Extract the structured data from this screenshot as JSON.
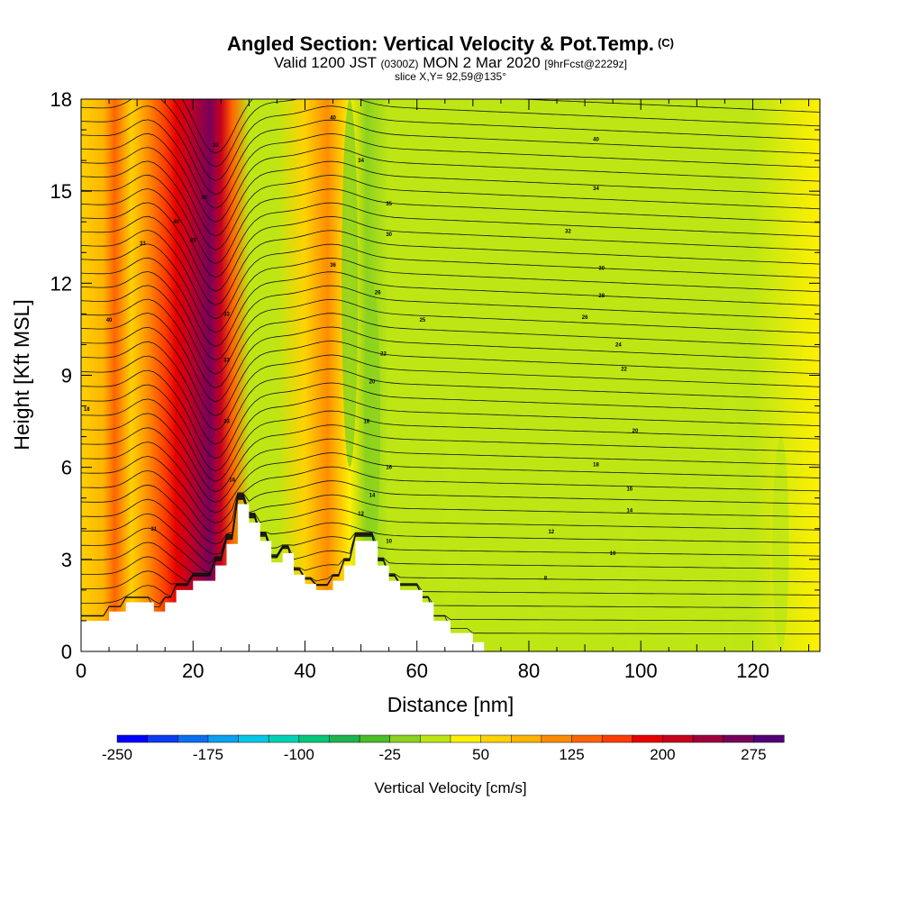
{
  "header": {
    "title": "Angled Section: Vertical Velocity & Pot.Temp.",
    "title_suffix": "(C)",
    "valid_prefix": "Valid 1200 JST",
    "valid_zulu": "(0300Z)",
    "valid_date": "MON 2 Mar 2020",
    "forecast": "[9hrFcst@2229z]",
    "slice": "slice X,Y= 92,59@135°"
  },
  "chart_data": {
    "type": "heatmap",
    "xlabel": "Distance [nm]",
    "ylabel": "Height [Kft MSL]",
    "xlim": [
      0,
      132
    ],
    "ylim": [
      0,
      18
    ],
    "x_ticks": [
      0,
      20,
      40,
      60,
      80,
      100,
      120
    ],
    "y_ticks": [
      0,
      3,
      6,
      9,
      12,
      15,
      18
    ],
    "colorbar": {
      "label": "Vertical Velocity [cm/s]",
      "range": [
        -250,
        300
      ],
      "step": 25,
      "tick_labels": [
        "-250",
        "-175",
        "-100",
        "-25",
        "50",
        "125",
        "200",
        "275"
      ],
      "colors": [
        "#0000ff",
        "#0a3cf0",
        "#0a6ef0",
        "#0aa0f0",
        "#00c8e6",
        "#00d2b4",
        "#00c878",
        "#1eb450",
        "#4bbe28",
        "#8cd21e",
        "#bee614",
        "#fff000",
        "#ffd200",
        "#ffb400",
        "#ff8c00",
        "#ff6400",
        "#ff3c00",
        "#e60000",
        "#c8001e",
        "#a0003c",
        "#78005a",
        "#500078"
      ]
    },
    "velocity_columns": [
      {
        "x": 0,
        "v": 50
      },
      {
        "x": 4,
        "v": 75
      },
      {
        "x": 6,
        "v": 125
      },
      {
        "x": 9,
        "v": 50
      },
      {
        "x": 12,
        "v": 100
      },
      {
        "x": 15,
        "v": 150
      },
      {
        "x": 17,
        "v": 180
      },
      {
        "x": 19,
        "v": 210
      },
      {
        "x": 21,
        "v": 240
      },
      {
        "x": 23,
        "v": 260
      },
      {
        "x": 25,
        "v": 200
      },
      {
        "x": 27,
        "v": 125
      },
      {
        "x": 30,
        "v": 20
      },
      {
        "x": 35,
        "v": 5
      },
      {
        "x": 40,
        "v": 60
      },
      {
        "x": 44,
        "v": 100
      },
      {
        "x": 48,
        "v": 30
      },
      {
        "x": 51,
        "v": -10
      },
      {
        "x": 55,
        "v": 0
      },
      {
        "x": 60,
        "v": 15
      },
      {
        "x": 70,
        "v": 20
      },
      {
        "x": 80,
        "v": 20
      },
      {
        "x": 90,
        "v": 15
      },
      {
        "x": 100,
        "v": 20
      },
      {
        "x": 110,
        "v": 20
      },
      {
        "x": 120,
        "v": 20
      },
      {
        "x": 132,
        "v": 25
      }
    ],
    "downdraft_bands": [
      {
        "x": 48,
        "y0": 6,
        "y1": 18,
        "v": -10
      },
      {
        "x": 52,
        "y0": 3,
        "y1": 12,
        "v": -5
      },
      {
        "x": 66,
        "y0": 0,
        "y1": 9,
        "v": 0
      },
      {
        "x": 81,
        "y0": 0,
        "y1": 2.5,
        "v": 0
      },
      {
        "x": 98,
        "y0": 0,
        "y1": 6,
        "v": 0
      },
      {
        "x": 116,
        "y0": 0,
        "y1": 9,
        "v": 0
      },
      {
        "x": 125,
        "y0": 0,
        "y1": 7,
        "v": 0
      }
    ],
    "terrain_profile": [
      [
        0,
        1.0
      ],
      [
        5,
        1.0
      ],
      [
        5,
        1.3
      ],
      [
        8,
        1.3
      ],
      [
        8,
        1.6
      ],
      [
        13,
        1.6
      ],
      [
        13,
        1.3
      ],
      [
        15,
        1.3
      ],
      [
        15,
        1.6
      ],
      [
        17,
        1.6
      ],
      [
        17,
        2.0
      ],
      [
        20,
        2.0
      ],
      [
        20,
        2.3
      ],
      [
        24,
        2.3
      ],
      [
        24,
        2.8
      ],
      [
        26,
        2.8
      ],
      [
        26,
        3.5
      ],
      [
        28,
        3.5
      ],
      [
        28,
        4.8
      ],
      [
        30,
        4.8
      ],
      [
        30,
        4.2
      ],
      [
        32,
        4.2
      ],
      [
        32,
        3.6
      ],
      [
        34,
        3.6
      ],
      [
        34,
        2.9
      ],
      [
        36,
        2.9
      ],
      [
        36,
        3.2
      ],
      [
        38,
        3.2
      ],
      [
        38,
        2.5
      ],
      [
        40,
        2.5
      ],
      [
        40,
        2.2
      ],
      [
        42,
        2.2
      ],
      [
        42,
        2.0
      ],
      [
        45,
        2.0
      ],
      [
        45,
        2.3
      ],
      [
        47,
        2.3
      ],
      [
        47,
        2.8
      ],
      [
        49,
        2.8
      ],
      [
        49,
        3.6
      ],
      [
        53,
        3.6
      ],
      [
        53,
        2.8
      ],
      [
        55,
        2.8
      ],
      [
        55,
        2.3
      ],
      [
        57,
        2.3
      ],
      [
        57,
        2.0
      ],
      [
        61,
        2.0
      ],
      [
        61,
        1.6
      ],
      [
        63,
        1.6
      ],
      [
        63,
        1.0
      ],
      [
        66,
        1.0
      ],
      [
        66,
        0.6
      ],
      [
        70,
        0.6
      ],
      [
        70,
        0.3
      ],
      [
        72,
        0.3
      ],
      [
        72,
        0
      ],
      [
        132,
        0
      ]
    ],
    "theta_labels": [
      {
        "x": 5,
        "y": 10.8,
        "text": "40"
      },
      {
        "x": 11,
        "y": 13.3,
        "text": "33"
      },
      {
        "x": 17,
        "y": 14.0,
        "text": "40"
      },
      {
        "x": 20,
        "y": 13.4,
        "text": "35"
      },
      {
        "x": 22,
        "y": 14.8,
        "text": "33"
      },
      {
        "x": 24,
        "y": 16.5,
        "text": "33"
      },
      {
        "x": 26,
        "y": 11.0,
        "text": "33"
      },
      {
        "x": 26,
        "y": 9.5,
        "text": "33"
      },
      {
        "x": 26,
        "y": 7.5,
        "text": "33"
      },
      {
        "x": 27,
        "y": 5.6,
        "text": "16"
      },
      {
        "x": 13,
        "y": 4.0,
        "text": "31"
      },
      {
        "x": 45,
        "y": 17.4,
        "text": "40"
      },
      {
        "x": 50,
        "y": 16.0,
        "text": "34"
      },
      {
        "x": 55,
        "y": 14.6,
        "text": "35"
      },
      {
        "x": 55,
        "y": 13.6,
        "text": "30"
      },
      {
        "x": 45,
        "y": 12.6,
        "text": "36"
      },
      {
        "x": 53,
        "y": 11.7,
        "text": "26"
      },
      {
        "x": 54,
        "y": 9.7,
        "text": "22"
      },
      {
        "x": 52,
        "y": 8.8,
        "text": "20"
      },
      {
        "x": 51,
        "y": 7.5,
        "text": "18"
      },
      {
        "x": 55,
        "y": 6.0,
        "text": "16"
      },
      {
        "x": 52,
        "y": 5.1,
        "text": "14"
      },
      {
        "x": 50,
        "y": 4.5,
        "text": "12"
      },
      {
        "x": 55,
        "y": 3.6,
        "text": "10"
      },
      {
        "x": 61,
        "y": 10.8,
        "text": "25"
      },
      {
        "x": 92,
        "y": 16.7,
        "text": "40"
      },
      {
        "x": 92,
        "y": 15.1,
        "text": "34"
      },
      {
        "x": 87,
        "y": 13.7,
        "text": "32"
      },
      {
        "x": 93,
        "y": 12.5,
        "text": "30"
      },
      {
        "x": 93,
        "y": 11.6,
        "text": "28"
      },
      {
        "x": 90,
        "y": 10.9,
        "text": "26"
      },
      {
        "x": 96,
        "y": 10.0,
        "text": "24"
      },
      {
        "x": 97,
        "y": 9.2,
        "text": "22"
      },
      {
        "x": 99,
        "y": 7.2,
        "text": "20"
      },
      {
        "x": 92,
        "y": 6.1,
        "text": "18"
      },
      {
        "x": 98,
        "y": 5.3,
        "text": "16"
      },
      {
        "x": 98,
        "y": 4.6,
        "text": "14"
      },
      {
        "x": 84,
        "y": 3.9,
        "text": "12"
      },
      {
        "x": 95,
        "y": 3.2,
        "text": "10"
      },
      {
        "x": 83,
        "y": 2.4,
        "text": "8"
      },
      {
        "x": 1,
        "y": 7.9,
        "text": "18"
      }
    ]
  }
}
